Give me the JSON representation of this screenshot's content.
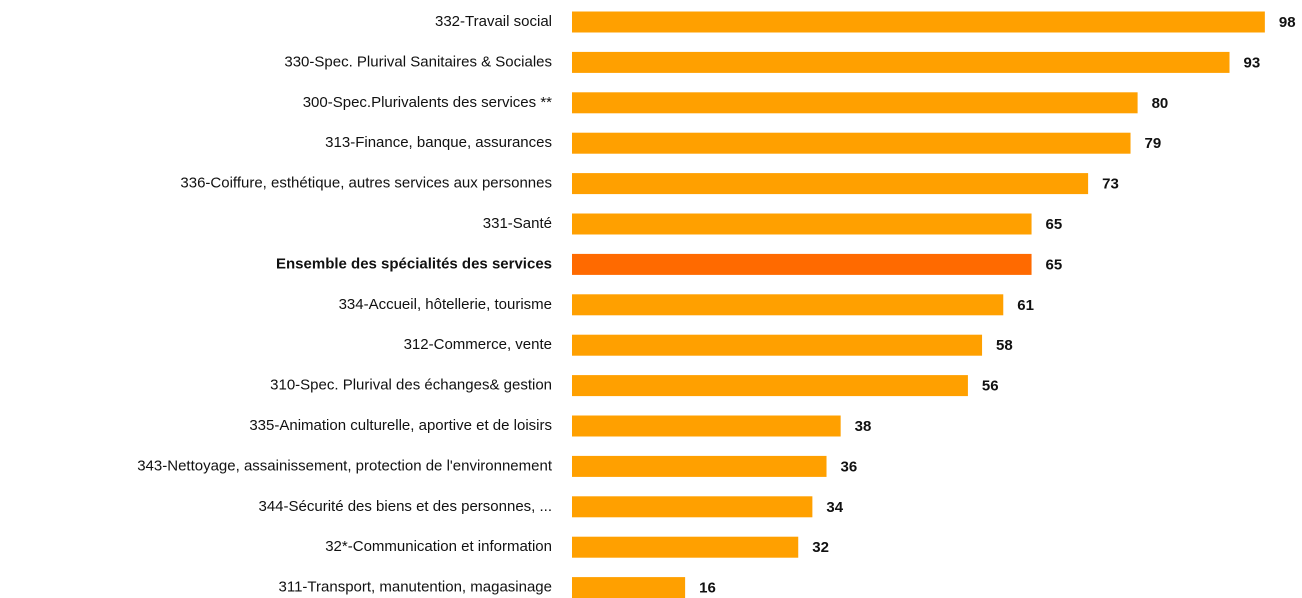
{
  "chart_data": {
    "type": "hbar",
    "categories": [
      "332-Travail social",
      "330-Spec. Plurival Sanitaires & Sociales",
      "300-Spec.Plurivalents des services **",
      "313-Finance, banque, assurances",
      "336-Coiffure, esthétique, autres services aux personnes",
      "331-Santé",
      "Ensemble des spécialités des services",
      "334-Accueil, hôtellerie, tourisme",
      "312-Commerce, vente",
      "310-Spec. Plurival des échanges& gestion",
      "335-Animation culturelle, aportive et de loisirs",
      "343-Nettoyage, assainissement, protection de l'environnement",
      "344-Sécurité des biens et des personnes, ...",
      "32*-Communication et information",
      "311-Transport, manutention, magasinage"
    ],
    "values": [
      98,
      93,
      80,
      79,
      73,
      65,
      65,
      61,
      58,
      56,
      38,
      36,
      34,
      32,
      16
    ],
    "color": "#ffa000",
    "highlight": 6,
    "highlight_color": "#ff6a00",
    "highlight_label_color": "#1f6fbf"
  }
}
